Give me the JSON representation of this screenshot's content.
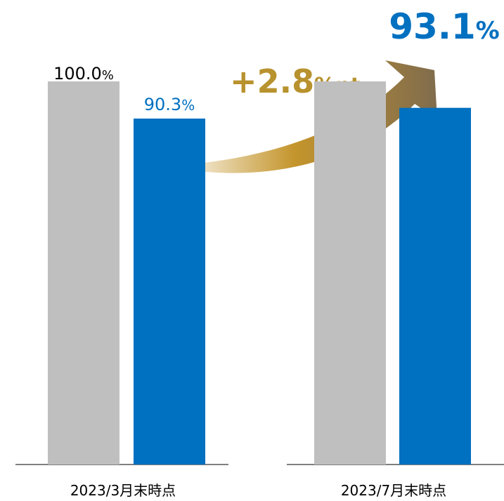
{
  "chart_data": {
    "type": "bar",
    "categories": [
      "2023/3月末時点",
      "2023/7月末時点"
    ],
    "series": [
      {
        "color": "#bfbfbf",
        "values": [
          100,
          100
        ],
        "value_labels": [
          "100.0%",
          null
        ]
      },
      {
        "color": "#0070c0",
        "values": [
          90.3,
          93.1
        ],
        "value_labels": [
          "90.3%",
          "93.1%"
        ]
      }
    ],
    "ylim": [
      0,
      100
    ],
    "annotation": "+2.8%pt"
  }
}
